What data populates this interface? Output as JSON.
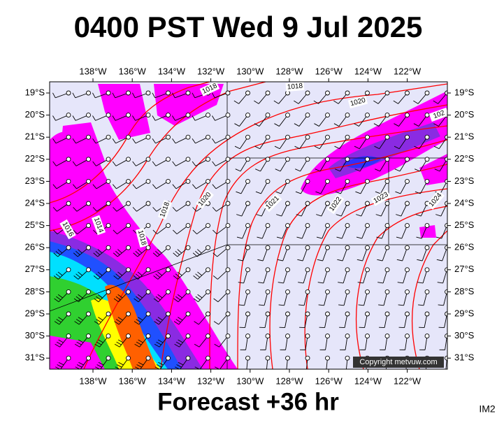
{
  "title": "0400 PST Wed 9 Jul 2025",
  "longitudes": [
    "138°W",
    "136°W",
    "134°W",
    "132°W",
    "130°W",
    "128°W",
    "126°W",
    "124°W",
    "122°W"
  ],
  "latitudes": [
    "19°S",
    "20°S",
    "21°S",
    "22°S",
    "23°S",
    "24°S",
    "25°S",
    "26°S",
    "27°S",
    "28°S",
    "29°S",
    "30°S",
    "31°S"
  ],
  "isobar_labels": [
    "1018",
    "1018",
    "1020",
    "102",
    "1016",
    "1014",
    "1018",
    "1018",
    "1020",
    "1021",
    "1022",
    "1023",
    "1024"
  ],
  "copyright": "Copyright metvuw.com",
  "footer": "Forecast +36 hr",
  "code": "IM2"
}
